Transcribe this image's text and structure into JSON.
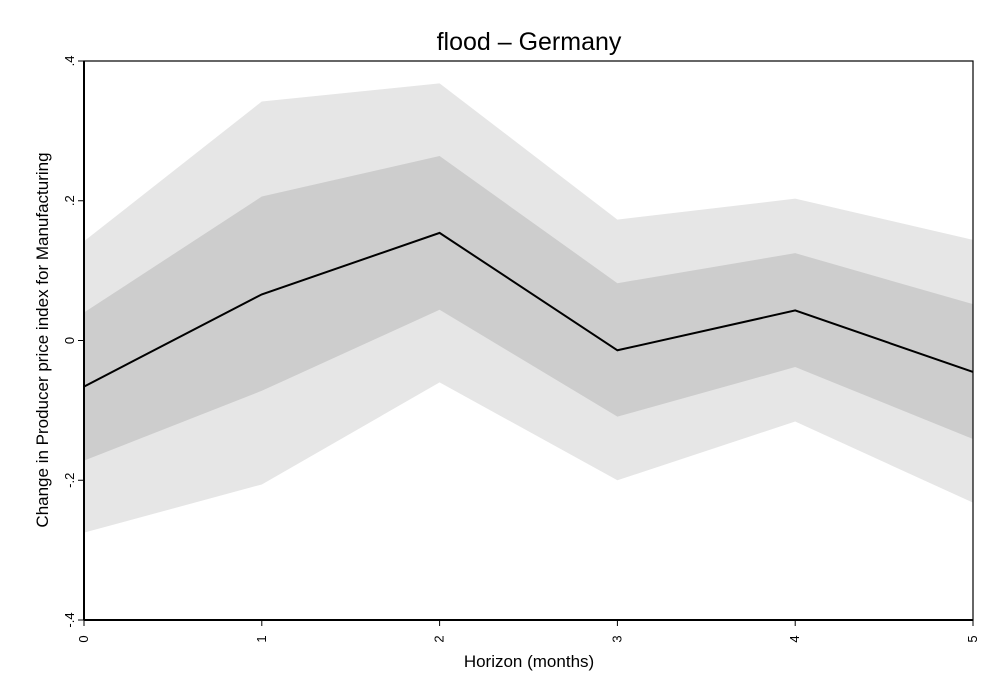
{
  "chart_data": {
    "type": "area",
    "title": "flood – Germany",
    "xlabel": "Horizon (months)",
    "ylabel": "Change in Producer price index for Manufacturing",
    "x": [
      0,
      1,
      2,
      3,
      4,
      5
    ],
    "xlim": [
      0,
      5
    ],
    "ylim": [
      -0.4,
      0.4
    ],
    "x_ticks": [
      0,
      1,
      2,
      3,
      4,
      5
    ],
    "x_tick_labels": [
      "0",
      "1",
      "2",
      "3",
      "4",
      "5"
    ],
    "y_ticks": [
      -0.4,
      -0.2,
      0,
      0.2,
      0.4
    ],
    "y_tick_labels": [
      "-.4",
      "-.2",
      "0",
      ".2",
      ".4"
    ],
    "grid": false,
    "legend": "none",
    "series": [
      {
        "values": [
          -0.066,
          0.066,
          0.154,
          -0.014,
          0.043,
          -0.045
        ]
      }
    ],
    "bands": [
      {
        "lower": [
          -0.275,
          -0.206,
          -0.06,
          -0.2,
          -0.116,
          -0.232
        ],
        "upper": [
          0.142,
          0.342,
          0.368,
          0.173,
          0.203,
          0.144
        ]
      },
      {
        "lower": [
          -0.172,
          -0.072,
          0.044,
          -0.109,
          -0.038,
          -0.141
        ],
        "upper": [
          0.04,
          0.206,
          0.264,
          0.082,
          0.125,
          0.052
        ]
      }
    ],
    "colors": {
      "outer_band": "#e6e6e6",
      "inner_band": "#cdcdcd",
      "line": "#000000",
      "frame": "#000000"
    }
  }
}
